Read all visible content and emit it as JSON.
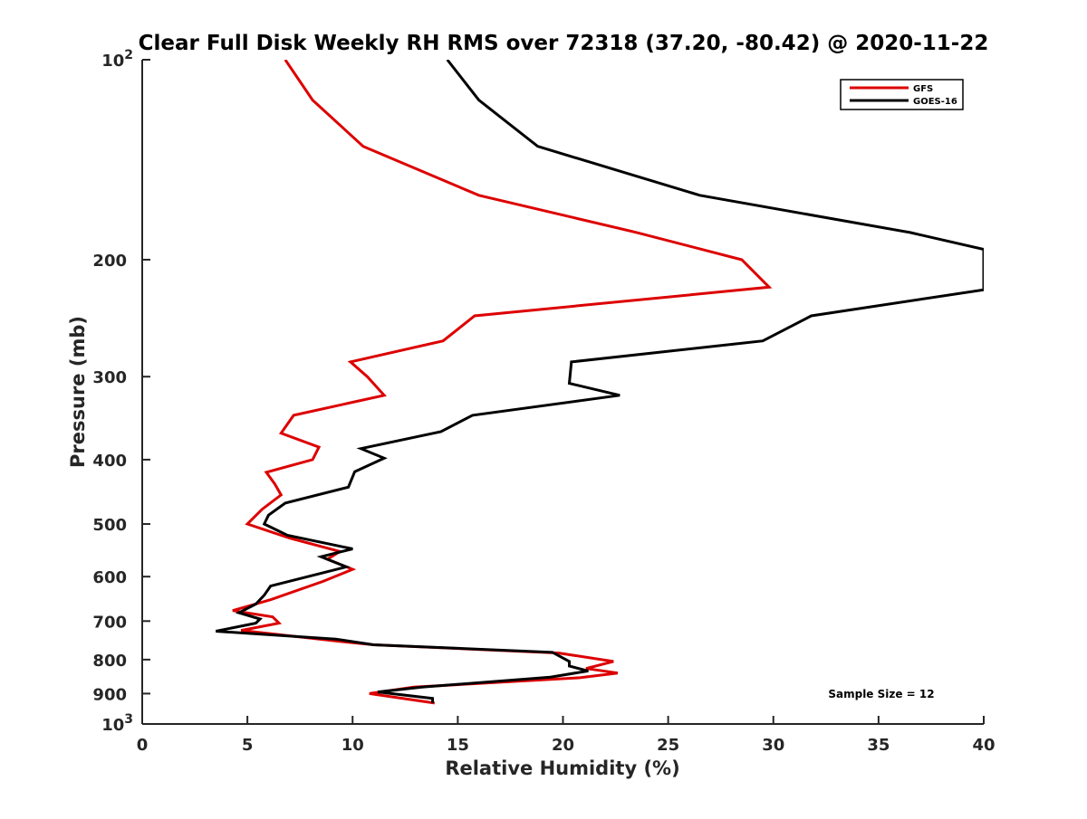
{
  "chart_data": {
    "type": "line",
    "title": "Clear Full Disk Weekly RH RMS over 72318 (37.20, -80.42) @ 2020-11-22",
    "xlabel": "Relative Humidity (%)",
    "ylabel": "Pressure (mb)",
    "xlim": [
      0,
      40
    ],
    "ylim": [
      100,
      1000
    ],
    "y_scale": "log",
    "y_reversed": true,
    "x_ticks": [
      0,
      5,
      10,
      15,
      20,
      25,
      30,
      35,
      40
    ],
    "x_tick_labels": [
      "0",
      "5",
      "10",
      "15",
      "20",
      "25",
      "30",
      "35",
      "40"
    ],
    "y_ticks": [
      100,
      200,
      300,
      400,
      500,
      600,
      700,
      800,
      900,
      1000
    ],
    "y_tick_labels": [
      {
        "base": "10",
        "exp": "2"
      },
      {
        "base": "200"
      },
      {
        "base": "300"
      },
      {
        "base": "400"
      },
      {
        "base": "500"
      },
      {
        "base": "600"
      },
      {
        "base": "700"
      },
      {
        "base": "800"
      },
      {
        "base": "900"
      },
      {
        "base": "10",
        "exp": "3"
      }
    ],
    "grid": false,
    "legend_position": "top-right",
    "annotation": "Sample Size = 12",
    "series": [
      {
        "name": "GFS",
        "color": "#dd0000",
        "points": [
          [
            6.8,
            100
          ],
          [
            8.1,
            115
          ],
          [
            10.5,
            135
          ],
          [
            16,
            160
          ],
          [
            23.5,
            182
          ],
          [
            28.5,
            200
          ],
          [
            29.8,
            220
          ],
          [
            15.8,
            243
          ],
          [
            14.3,
            265
          ],
          [
            9.9,
            285
          ],
          [
            10.7,
            300
          ],
          [
            11.5,
            320
          ],
          [
            7.2,
            343
          ],
          [
            6.6,
            365
          ],
          [
            8.4,
            383
          ],
          [
            8.1,
            400
          ],
          [
            5.9,
            418
          ],
          [
            6.3,
            435
          ],
          [
            6.6,
            452
          ],
          [
            5.7,
            475
          ],
          [
            5.0,
            500
          ],
          [
            7.0,
            525
          ],
          [
            9.4,
            550
          ],
          [
            8.8,
            565
          ],
          [
            10.0,
            585
          ],
          [
            8.6,
            610
          ],
          [
            6.1,
            650
          ],
          [
            4.3,
            675
          ],
          [
            6.2,
            690
          ],
          [
            6.5,
            705
          ],
          [
            4.7,
            723
          ],
          [
            9.2,
            750
          ],
          [
            11.0,
            760
          ],
          [
            19.8,
            782
          ],
          [
            22.4,
            805
          ],
          [
            21.1,
            825
          ],
          [
            22.6,
            838
          ],
          [
            20.8,
            852
          ],
          [
            12.9,
            880
          ],
          [
            10.8,
            900
          ],
          [
            13.9,
            930
          ]
        ]
      },
      {
        "name": "GOES-16",
        "color": "#000000",
        "points": [
          [
            14.5,
            100
          ],
          [
            16.0,
            115
          ],
          [
            18.8,
            135
          ],
          [
            26.5,
            160
          ],
          [
            36.5,
            182
          ],
          [
            40.0,
            193
          ],
          [
            40.0,
            222
          ],
          [
            31.8,
            243
          ],
          [
            29.5,
            265
          ],
          [
            20.4,
            285
          ],
          [
            20.3,
            307
          ],
          [
            22.7,
            320
          ],
          [
            15.7,
            343
          ],
          [
            14.2,
            363
          ],
          [
            10.4,
            385
          ],
          [
            11.5,
            398
          ],
          [
            10.1,
            417
          ],
          [
            9.8,
            440
          ],
          [
            6.8,
            465
          ],
          [
            6.0,
            485
          ],
          [
            5.8,
            500
          ],
          [
            6.9,
            520
          ],
          [
            10.0,
            545
          ],
          [
            8.5,
            560
          ],
          [
            9.7,
            580
          ],
          [
            6.1,
            620
          ],
          [
            5.8,
            640
          ],
          [
            5.4,
            660
          ],
          [
            4.6,
            680
          ],
          [
            5.6,
            695
          ],
          [
            5.4,
            705
          ],
          [
            3.5,
            725
          ],
          [
            9.2,
            745
          ],
          [
            11.0,
            760
          ],
          [
            19.5,
            780
          ],
          [
            20.3,
            805
          ],
          [
            20.3,
            818
          ],
          [
            21.2,
            832
          ],
          [
            19.4,
            850
          ],
          [
            13.3,
            880
          ],
          [
            11.2,
            895
          ],
          [
            13.8,
            915
          ],
          [
            13.8,
            930
          ]
        ]
      }
    ]
  }
}
